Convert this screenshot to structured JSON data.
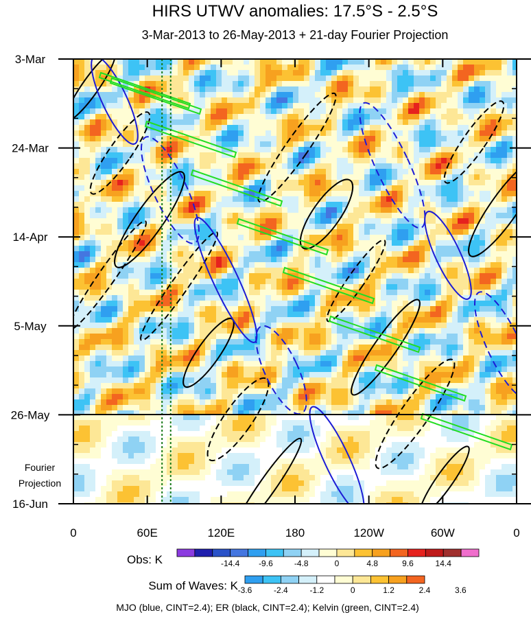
{
  "chart_data": {
    "type": "heatmap",
    "title": "HIRS UTWV anomalies: 17.5°S - 2.5°S",
    "subtitle": "3-Mar-2013 to 26-May-2013 + 21-day Fourier Projection",
    "x_ticks": [
      "0",
      "60E",
      "120E",
      "180",
      "120W",
      "60W",
      "0"
    ],
    "x_range": [
      0,
      360
    ],
    "y_ticks": [
      "3-Mar",
      "24-Mar",
      "14-Apr",
      "5-May",
      "26-May",
      "16-Jun"
    ],
    "y_range_days": [
      0,
      105
    ],
    "projection_label_line1": "Fourier",
    "projection_label_line2": "Projection",
    "observation_end": "26-May",
    "marker_lines_deg": [
      72,
      79
    ],
    "obs_colorbar": {
      "label": "Obs: K",
      "tick_labels": [
        "-14.4",
        "-9.6",
        "-4.8",
        "0",
        "4.8",
        "9.6",
        "14.4"
      ],
      "colors": [
        "#8b3be0",
        "#1f1fae",
        "#2a52c8",
        "#4476e0",
        "#2f9ff0",
        "#3dc3f5",
        "#8fd2f4",
        "#d4f0fa",
        "#fffdd4",
        "#fde796",
        "#fcc233",
        "#f7a11f",
        "#f36520",
        "#e6221e",
        "#bf1a1a",
        "#a0302e",
        "#f06ecc"
      ]
    },
    "waves_colorbar": {
      "label": "Sum of Waves: K",
      "tick_labels": [
        "-3.6",
        "-2.4",
        "-1.2",
        "0",
        "1.2",
        "2.4",
        "3.6"
      ],
      "colors": [
        "#2f9ff0",
        "#3dc3f5",
        "#8fd2f4",
        "#d4f0fa",
        "#ffffff",
        "#fffdd4",
        "#fde796",
        "#fcc233",
        "#f7a11f",
        "#f36520"
      ]
    },
    "series": [
      {
        "name": "MJO",
        "color": "#1c1cd6",
        "cint": 2.4
      },
      {
        "name": "ER",
        "color": "#000000",
        "cint": 2.4
      },
      {
        "name": "Kelvin",
        "color": "#22dd22",
        "cint": 2.4
      }
    ],
    "caption": "MJO (blue, CINT=2.4); ER (black, CINT=2.4); Kelvin (green, CINT=2.4)"
  }
}
